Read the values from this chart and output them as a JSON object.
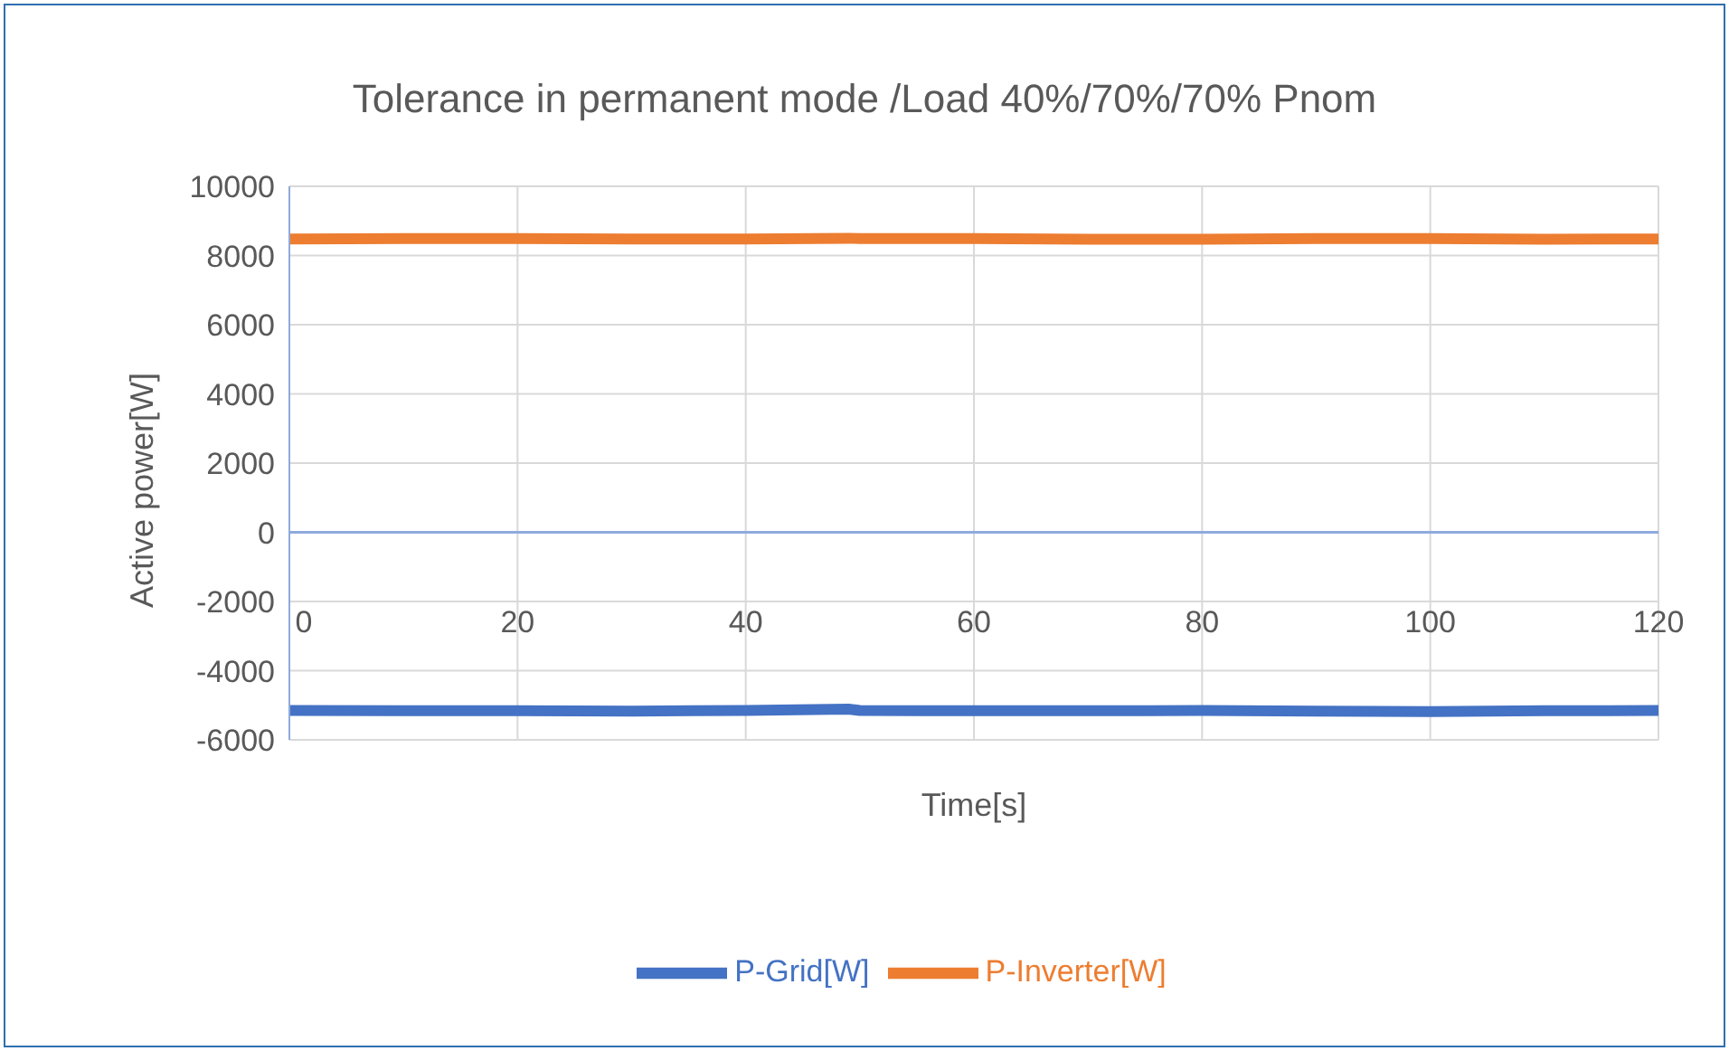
{
  "chart_data": {
    "type": "line",
    "title": "Tolerance in permanent mode /Load 40%/70%/70% Pnom",
    "xlabel": "Time[s]",
    "ylabel": "Active power[W]",
    "x": [
      0,
      10,
      20,
      30,
      40,
      49,
      50,
      60,
      70,
      80,
      90,
      100,
      110,
      120
    ],
    "series": [
      {
        "name": "P-Grid[W]",
        "color": "#4472c4",
        "values": [
          -5150,
          -5160,
          -5160,
          -5170,
          -5150,
          -5110,
          -5150,
          -5160,
          -5160,
          -5150,
          -5170,
          -5180,
          -5160,
          -5150
        ]
      },
      {
        "name": "P-Inverter[W]",
        "color": "#ed7d31",
        "values": [
          8480,
          8490,
          8490,
          8480,
          8480,
          8500,
          8490,
          8490,
          8470,
          8470,
          8490,
          8490,
          8470,
          8480
        ]
      }
    ],
    "xlim": [
      0,
      120
    ],
    "xticks": [
      0,
      20,
      40,
      60,
      80,
      100,
      120
    ],
    "ylim": [
      -6000,
      10000
    ],
    "yticks": [
      -6000,
      -4000,
      -2000,
      0,
      2000,
      4000,
      6000,
      8000,
      10000
    ],
    "grid": true,
    "legend": "bottom",
    "marker": "none",
    "line_style": "solid"
  }
}
